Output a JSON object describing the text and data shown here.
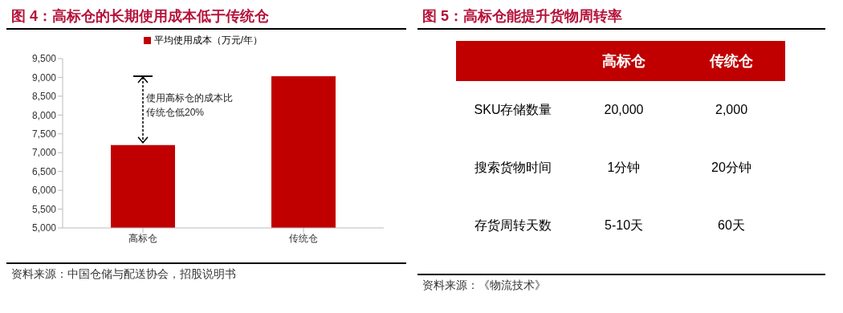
{
  "chart_data": [
    {
      "type": "bar",
      "title": "图 4：高标仓的长期使用成本低于传统仓",
      "categories": [
        "高标仓",
        "传统仓"
      ],
      "series": [
        {
          "name": "平均使用成本（万元/年）",
          "color": "#c00000",
          "values": [
            7200,
            9030
          ]
        }
      ],
      "ylim": [
        5000,
        9500
      ],
      "yticks": [
        {
          "value": 5000,
          "label": "5,000"
        },
        {
          "value": 5500,
          "label": "5,500"
        },
        {
          "value": 6000,
          "label": "6,000"
        },
        {
          "value": 6500,
          "label": "6,500"
        },
        {
          "value": 7000,
          "label": "7,000"
        },
        {
          "value": 7500,
          "label": "7,500"
        },
        {
          "value": 8000,
          "label": "8,000"
        },
        {
          "value": 8500,
          "label": "8,500"
        },
        {
          "value": 9000,
          "label": "9,000"
        },
        {
          "value": 9500,
          "label": "9,500"
        }
      ],
      "legend": "top",
      "annotations": [
        "使用高标仓的成本比传统仓低20%",
        "资料来源：中国仓储与配送协会，招股说明书"
      ]
    },
    {
      "type": "other",
      "title": "图 5：高标仓能提升货物周转率",
      "categories": [
        "高标仓",
        "传统仓"
      ],
      "y_categories": [
        "SKU存储数量",
        "搜索货物时间",
        "存货周转天数"
      ],
      "cell_labels": [
        [
          "20,000",
          "2,000"
        ],
        [
          "1分钟",
          "20分钟"
        ],
        [
          "5-10天",
          "60天"
        ]
      ],
      "annotations": [
        "资料来源：《物流技术》"
      ]
    }
  ]
}
